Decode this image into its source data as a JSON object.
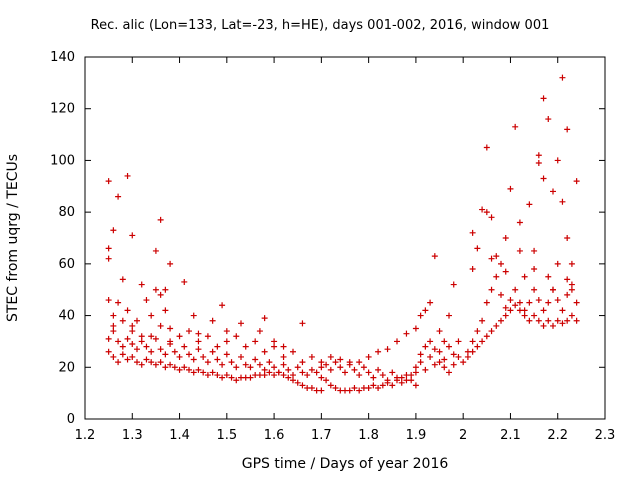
{
  "chart_data": {
    "type": "scatter",
    "title": "Rec. alic (Lon=133, Lat=-23, h=HE), days 001-002, 2016, window 001",
    "xlabel": "GPS time / Days of year 2016",
    "ylabel": "STEC from uqrg / TECUs",
    "xlim": [
      1.2,
      2.3
    ],
    "ylim": [
      0,
      140
    ],
    "xticks": [
      "1.2",
      "1.3",
      "1.4",
      "1.5",
      "1.6",
      "1.7",
      "1.8",
      "1.9",
      "2",
      "2.1",
      "2.2",
      "2.3"
    ],
    "yticks": [
      "0",
      "20",
      "40",
      "60",
      "80",
      "100",
      "120",
      "140"
    ],
    "marker": "+",
    "color": "#cc0000",
    "grid": false,
    "points": [
      [
        1.25,
        92
      ],
      [
        1.25,
        66
      ],
      [
        1.25,
        62
      ],
      [
        1.26,
        73
      ],
      [
        1.27,
        86
      ],
      [
        1.29,
        94
      ],
      [
        1.3,
        71
      ],
      [
        1.35,
        65
      ],
      [
        1.36,
        77
      ],
      [
        1.35,
        50
      ],
      [
        1.37,
        50
      ],
      [
        1.38,
        60
      ],
      [
        1.25,
        46
      ],
      [
        1.26,
        40
      ],
      [
        1.27,
        45
      ],
      [
        1.28,
        54
      ],
      [
        1.29,
        42
      ],
      [
        1.3,
        36
      ],
      [
        1.31,
        38
      ],
      [
        1.32,
        52
      ],
      [
        1.33,
        46
      ],
      [
        1.34,
        40
      ],
      [
        1.36,
        48
      ],
      [
        1.37,
        42
      ],
      [
        1.38,
        35
      ],
      [
        1.41,
        53
      ],
      [
        1.43,
        40
      ],
      [
        1.44,
        33
      ],
      [
        1.47,
        38
      ],
      [
        1.49,
        44
      ],
      [
        1.5,
        34
      ],
      [
        1.53,
        37
      ],
      [
        1.57,
        34
      ],
      [
        1.58,
        39
      ],
      [
        1.6,
        30
      ],
      [
        1.62,
        28
      ],
      [
        1.66,
        37
      ],
      [
        1.25,
        31
      ],
      [
        1.26,
        34
      ],
      [
        1.27,
        30
      ],
      [
        1.28,
        28
      ],
      [
        1.29,
        31
      ],
      [
        1.3,
        29
      ],
      [
        1.31,
        27
      ],
      [
        1.32,
        32
      ],
      [
        1.33,
        28
      ],
      [
        1.34,
        26
      ],
      [
        1.35,
        31
      ],
      [
        1.36,
        27
      ],
      [
        1.37,
        25
      ],
      [
        1.38,
        29
      ],
      [
        1.39,
        26
      ],
      [
        1.4,
        24
      ],
      [
        1.41,
        28
      ],
      [
        1.42,
        25
      ],
      [
        1.43,
        23
      ],
      [
        1.44,
        27
      ],
      [
        1.45,
        24
      ],
      [
        1.46,
        22
      ],
      [
        1.47,
        26
      ],
      [
        1.48,
        23
      ],
      [
        1.49,
        21
      ],
      [
        1.5,
        25
      ],
      [
        1.51,
        22
      ],
      [
        1.52,
        20
      ],
      [
        1.53,
        24
      ],
      [
        1.54,
        21
      ],
      [
        1.55,
        20
      ],
      [
        1.56,
        23
      ],
      [
        1.57,
        21
      ],
      [
        1.58,
        19
      ],
      [
        1.59,
        22
      ],
      [
        1.6,
        20
      ],
      [
        1.61,
        18
      ],
      [
        1.62,
        21
      ],
      [
        1.63,
        19
      ],
      [
        1.64,
        17
      ],
      [
        1.65,
        20
      ],
      [
        1.66,
        18
      ],
      [
        1.67,
        17
      ],
      [
        1.68,
        19
      ],
      [
        1.69,
        18
      ],
      [
        1.7,
        16
      ],
      [
        1.25,
        26
      ],
      [
        1.26,
        24
      ],
      [
        1.27,
        22
      ],
      [
        1.28,
        25
      ],
      [
        1.29,
        23
      ],
      [
        1.3,
        24
      ],
      [
        1.31,
        22
      ],
      [
        1.32,
        21
      ],
      [
        1.33,
        23
      ],
      [
        1.34,
        22
      ],
      [
        1.35,
        21
      ],
      [
        1.36,
        22
      ],
      [
        1.37,
        20
      ],
      [
        1.38,
        21
      ],
      [
        1.39,
        20
      ],
      [
        1.4,
        19
      ],
      [
        1.41,
        20
      ],
      [
        1.42,
        19
      ],
      [
        1.43,
        18
      ],
      [
        1.44,
        19
      ],
      [
        1.45,
        18
      ],
      [
        1.46,
        17
      ],
      [
        1.47,
        18
      ],
      [
        1.48,
        17
      ],
      [
        1.49,
        16
      ],
      [
        1.5,
        17
      ],
      [
        1.51,
        16
      ],
      [
        1.52,
        15
      ],
      [
        1.53,
        16
      ],
      [
        1.54,
        16
      ],
      [
        1.55,
        16
      ],
      [
        1.56,
        17
      ],
      [
        1.57,
        17
      ],
      [
        1.58,
        17
      ],
      [
        1.59,
        18
      ],
      [
        1.6,
        17
      ],
      [
        1.61,
        18
      ],
      [
        1.62,
        17
      ],
      [
        1.63,
        16
      ],
      [
        1.64,
        15
      ],
      [
        1.65,
        14
      ],
      [
        1.66,
        13
      ],
      [
        1.67,
        12
      ],
      [
        1.68,
        12
      ],
      [
        1.69,
        11
      ],
      [
        1.7,
        11
      ],
      [
        1.26,
        36
      ],
      [
        1.28,
        38
      ],
      [
        1.3,
        34
      ],
      [
        1.32,
        30
      ],
      [
        1.34,
        32
      ],
      [
        1.36,
        36
      ],
      [
        1.38,
        30
      ],
      [
        1.4,
        32
      ],
      [
        1.42,
        34
      ],
      [
        1.44,
        30
      ],
      [
        1.46,
        32
      ],
      [
        1.48,
        28
      ],
      [
        1.5,
        30
      ],
      [
        1.52,
        32
      ],
      [
        1.54,
        28
      ],
      [
        1.56,
        30
      ],
      [
        1.58,
        26
      ],
      [
        1.6,
        28
      ],
      [
        1.62,
        24
      ],
      [
        1.64,
        26
      ],
      [
        1.66,
        22
      ],
      [
        1.68,
        24
      ],
      [
        1.7,
        22
      ],
      [
        1.7,
        20
      ],
      [
        1.71,
        21
      ],
      [
        1.72,
        19
      ],
      [
        1.73,
        22
      ],
      [
        1.74,
        20
      ],
      [
        1.75,
        18
      ],
      [
        1.76,
        21
      ],
      [
        1.77,
        19
      ],
      [
        1.78,
        17
      ],
      [
        1.79,
        20
      ],
      [
        1.8,
        18
      ],
      [
        1.81,
        16
      ],
      [
        1.82,
        19
      ],
      [
        1.83,
        17
      ],
      [
        1.84,
        15
      ],
      [
        1.85,
        18
      ],
      [
        1.86,
        16
      ],
      [
        1.87,
        14
      ],
      [
        1.88,
        17
      ],
      [
        1.89,
        15
      ],
      [
        1.9,
        13
      ],
      [
        1.71,
        15
      ],
      [
        1.72,
        13
      ],
      [
        1.73,
        12
      ],
      [
        1.74,
        11
      ],
      [
        1.75,
        11
      ],
      [
        1.76,
        11
      ],
      [
        1.77,
        12
      ],
      [
        1.78,
        11
      ],
      [
        1.79,
        12
      ],
      [
        1.8,
        12
      ],
      [
        1.81,
        13
      ],
      [
        1.82,
        12
      ],
      [
        1.83,
        13
      ],
      [
        1.84,
        14
      ],
      [
        1.85,
        13
      ],
      [
        1.86,
        15
      ],
      [
        1.87,
        16
      ],
      [
        1.88,
        15
      ],
      [
        1.89,
        17
      ],
      [
        1.9,
        18
      ],
      [
        1.72,
        24
      ],
      [
        1.74,
        23
      ],
      [
        1.76,
        22
      ],
      [
        1.78,
        22
      ],
      [
        1.8,
        24
      ],
      [
        1.82,
        26
      ],
      [
        1.84,
        27
      ],
      [
        1.86,
        30
      ],
      [
        1.88,
        33
      ],
      [
        1.9,
        35
      ],
      [
        1.91,
        40
      ],
      [
        1.92,
        42
      ],
      [
        1.93,
        45
      ],
      [
        1.94,
        63
      ],
      [
        1.95,
        34
      ],
      [
        1.96,
        30
      ],
      [
        1.97,
        40
      ],
      [
        1.98,
        52
      ],
      [
        1.9,
        20
      ],
      [
        1.91,
        22
      ],
      [
        1.92,
        19
      ],
      [
        1.93,
        24
      ],
      [
        1.94,
        21
      ],
      [
        1.95,
        26
      ],
      [
        1.96,
        23
      ],
      [
        1.97,
        28
      ],
      [
        1.98,
        25
      ],
      [
        1.99,
        30
      ],
      [
        1.91,
        25
      ],
      [
        1.92,
        28
      ],
      [
        1.93,
        30
      ],
      [
        1.94,
        27
      ],
      [
        1.95,
        22
      ],
      [
        1.96,
        20
      ],
      [
        1.97,
        18
      ],
      [
        1.98,
        21
      ],
      [
        1.99,
        24
      ],
      [
        2.0,
        22
      ],
      [
        2.01,
        24
      ],
      [
        2.02,
        26
      ],
      [
        2.03,
        28
      ],
      [
        2.04,
        30
      ],
      [
        2.05,
        32
      ],
      [
        2.06,
        34
      ],
      [
        2.07,
        36
      ],
      [
        2.08,
        38
      ],
      [
        2.09,
        40
      ],
      [
        2.1,
        42
      ],
      [
        2.11,
        44
      ],
      [
        2.12,
        42
      ],
      [
        2.13,
        40
      ],
      [
        2.14,
        38
      ],
      [
        2.15,
        40
      ],
      [
        2.16,
        38
      ],
      [
        2.17,
        36
      ],
      [
        2.18,
        38
      ],
      [
        2.19,
        36
      ],
      [
        2.2,
        38
      ],
      [
        2.21,
        37
      ],
      [
        2.22,
        38
      ],
      [
        2.23,
        40
      ],
      [
        2.24,
        38
      ],
      [
        2.01,
        26
      ],
      [
        2.02,
        30
      ],
      [
        2.03,
        34
      ],
      [
        2.04,
        38
      ],
      [
        2.05,
        45
      ],
      [
        2.06,
        50
      ],
      [
        2.07,
        55
      ],
      [
        2.08,
        48
      ],
      [
        2.09,
        43
      ],
      [
        2.1,
        46
      ],
      [
        2.11,
        50
      ],
      [
        2.12,
        45
      ],
      [
        2.13,
        42
      ],
      [
        2.14,
        45
      ],
      [
        2.15,
        50
      ],
      [
        2.16,
        46
      ],
      [
        2.17,
        42
      ],
      [
        2.18,
        45
      ],
      [
        2.19,
        50
      ],
      [
        2.2,
        46
      ],
      [
        2.21,
        42
      ],
      [
        2.22,
        48
      ],
      [
        2.23,
        52
      ],
      [
        2.24,
        45
      ],
      [
        2.02,
        58
      ],
      [
        2.03,
        66
      ],
      [
        2.04,
        81
      ],
      [
        2.05,
        80
      ],
      [
        2.06,
        78
      ],
      [
        2.07,
        63
      ],
      [
        2.08,
        60
      ],
      [
        2.09,
        57
      ],
      [
        2.1,
        89
      ],
      [
        2.11,
        113
      ],
      [
        2.12,
        76
      ],
      [
        2.13,
        55
      ],
      [
        2.14,
        83
      ],
      [
        2.15,
        65
      ],
      [
        2.16,
        102
      ],
      [
        2.16,
        99
      ],
      [
        2.17,
        124
      ],
      [
        2.17,
        93
      ],
      [
        2.18,
        116
      ],
      [
        2.19,
        88
      ],
      [
        2.2,
        100
      ],
      [
        2.21,
        84
      ],
      [
        2.21,
        132
      ],
      [
        2.22,
        112
      ],
      [
        2.22,
        70
      ],
      [
        2.23,
        60
      ],
      [
        2.24,
        92
      ],
      [
        2.02,
        72
      ],
      [
        2.05,
        105
      ],
      [
        2.06,
        62
      ],
      [
        2.09,
        70
      ],
      [
        2.12,
        65
      ],
      [
        2.15,
        58
      ],
      [
        2.18,
        55
      ],
      [
        2.19,
        50
      ],
      [
        2.2,
        60
      ],
      [
        2.22,
        54
      ],
      [
        2.23,
        50
      ]
    ]
  }
}
